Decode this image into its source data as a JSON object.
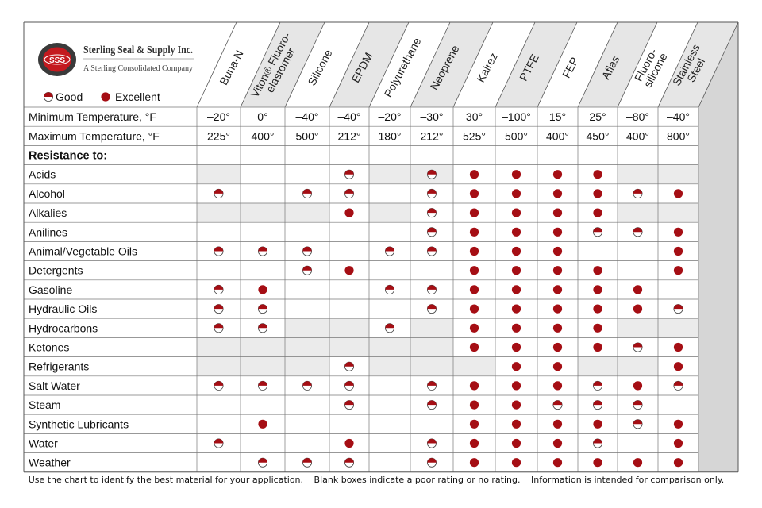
{
  "company": {
    "logo_text": "SSS",
    "name": "Sterling Seal & Supply Inc.",
    "tagline": "A Sterling Consolidated Company"
  },
  "legend": {
    "good": "Good",
    "excellent": "Excellent"
  },
  "colors": {
    "accent": "#a50e14",
    "header_shade": "#e6e6e6",
    "cell_shade": "#ebebeb",
    "side_shade": "#d6d6d6"
  },
  "materials": [
    "Buna-N",
    "Viton® Fluoro-elastomer",
    "Silicone",
    "EPDM",
    "Polyurethane",
    "Neoprene",
    "Kalrez",
    "PTFE",
    "FEP",
    "Aflas",
    "Fluoro-silicone",
    "Stainless Steel"
  ],
  "material_label_lines": [
    [
      "Buna-N"
    ],
    [
      "Viton® Fluoro-",
      "elastomer"
    ],
    [
      "Silicone"
    ],
    [
      "EPDM"
    ],
    [
      "Polyurethane"
    ],
    [
      "Neoprene"
    ],
    [
      "Kalrez"
    ],
    [
      "PTFE"
    ],
    [
      "FEP"
    ],
    [
      "Aflas"
    ],
    [
      "Fluoro-",
      "silicone"
    ],
    [
      "Stainless",
      "Steel"
    ]
  ],
  "temperature_rows": [
    {
      "label": "Minimum Temperature, °F",
      "values": [
        "–20°",
        "0°",
        "–40°",
        "–40°",
        "–20°",
        "–30°",
        "30°",
        "–100°",
        "15°",
        "25°",
        "–80°",
        "–40°"
      ]
    },
    {
      "label": "Maximum Temperature, °F",
      "values": [
        "225°",
        "400°",
        "500°",
        "212°",
        "180°",
        "212°",
        "525°",
        "500°",
        "400°",
        "450°",
        "400°",
        "800°"
      ]
    }
  ],
  "resistance_heading": "Resistance to:",
  "ratings_key": {
    "G": "Good",
    "E": "Excellent",
    "": "Poor or no rating"
  },
  "resistance_rows": [
    {
      "label": "Acids",
      "ratings": [
        "",
        "",
        "",
        "G",
        "",
        "G",
        "E",
        "E",
        "E",
        "E",
        "",
        ""
      ]
    },
    {
      "label": "Alcohol",
      "ratings": [
        "G",
        "",
        "G",
        "G",
        "",
        "G",
        "E",
        "E",
        "E",
        "E",
        "G",
        "E"
      ]
    },
    {
      "label": "Alkalies",
      "ratings": [
        "",
        "",
        "",
        "E",
        "",
        "G",
        "E",
        "E",
        "E",
        "E",
        "",
        ""
      ]
    },
    {
      "label": "Anilines",
      "ratings": [
        "",
        "",
        "",
        "",
        "",
        "G",
        "E",
        "E",
        "E",
        "G",
        "G",
        "E"
      ]
    },
    {
      "label": "Animal/Vegetable Oils",
      "ratings": [
        "G",
        "G",
        "G",
        "",
        "G",
        "G",
        "E",
        "E",
        "E",
        "",
        "",
        "E"
      ]
    },
    {
      "label": "Detergents",
      "ratings": [
        "",
        "",
        "G",
        "E",
        "",
        "",
        "E",
        "E",
        "E",
        "E",
        "",
        "E"
      ]
    },
    {
      "label": "Gasoline",
      "ratings": [
        "G",
        "E",
        "",
        "",
        "G",
        "G",
        "E",
        "E",
        "E",
        "E",
        "E",
        ""
      ]
    },
    {
      "label": "Hydraulic Oils",
      "ratings": [
        "G",
        "G",
        "",
        "",
        "",
        "G",
        "E",
        "E",
        "E",
        "E",
        "E",
        "G"
      ]
    },
    {
      "label": "Hydrocarbons",
      "ratings": [
        "G",
        "G",
        "",
        "",
        "G",
        "",
        "E",
        "E",
        "E",
        "E",
        "",
        ""
      ]
    },
    {
      "label": "Ketones",
      "ratings": [
        "",
        "",
        "",
        "",
        "",
        "",
        "E",
        "E",
        "E",
        "E",
        "G",
        "E"
      ]
    },
    {
      "label": "Refrigerants",
      "ratings": [
        "",
        "",
        "",
        "G",
        "",
        "",
        "",
        "E",
        "E",
        "",
        "",
        "E"
      ]
    },
    {
      "label": "Salt Water",
      "ratings": [
        "G",
        "G",
        "G",
        "G",
        "",
        "G",
        "E",
        "E",
        "E",
        "G",
        "E",
        "G"
      ]
    },
    {
      "label": "Steam",
      "ratings": [
        "",
        "",
        "",
        "G",
        "",
        "G",
        "E",
        "E",
        "G",
        "G",
        "G",
        ""
      ]
    },
    {
      "label": "Synthetic Lubricants",
      "ratings": [
        "",
        "E",
        "",
        "",
        "",
        "",
        "E",
        "E",
        "E",
        "E",
        "G",
        "E"
      ]
    },
    {
      "label": "Water",
      "ratings": [
        "G",
        "",
        "",
        "E",
        "",
        "G",
        "E",
        "E",
        "E",
        "G",
        "",
        "E"
      ]
    },
    {
      "label": "Weather",
      "ratings": [
        "",
        "G",
        "G",
        "G",
        "",
        "G",
        "E",
        "E",
        "E",
        "E",
        "E",
        "E"
      ]
    }
  ],
  "shaded_cells": {
    "Acids": [
      0,
      4,
      5,
      10,
      11
    ],
    "Alkalies": [
      0,
      1,
      2,
      4,
      10,
      11
    ],
    "Hydrocarbons": [
      2,
      3,
      5,
      10,
      11
    ],
    "Ketones": [
      0,
      1,
      2,
      3,
      4,
      5
    ],
    "Refrigerants": [
      0,
      1,
      2,
      4,
      5,
      6,
      9,
      10
    ]
  },
  "footer": {
    "note1": "Use the chart to identify the best material for your application.",
    "note2": "Blank boxes indicate a poor rating or no rating.",
    "note3": "Information is intended for comparison only."
  }
}
